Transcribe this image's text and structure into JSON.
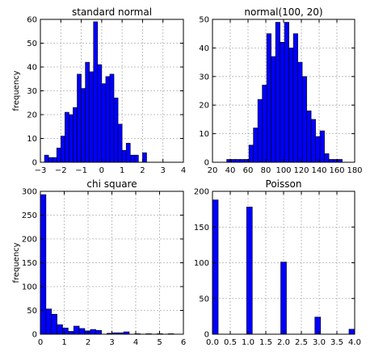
{
  "chart_data": [
    {
      "type": "bar",
      "title": "standard normal",
      "xlabel": "",
      "ylabel": "frequency",
      "xlim": [
        -3,
        4
      ],
      "ylim": [
        0,
        60
      ],
      "xticks": [
        "−3",
        "−2",
        "−1",
        "0",
        "1",
        "2",
        "3",
        "4"
      ],
      "yticks": [
        "0",
        "10",
        "20",
        "30",
        "40",
        "50",
        "60"
      ],
      "grid": true,
      "bin_start": -2.8,
      "bin_width": 0.2,
      "values": [
        3,
        2,
        2,
        6,
        11,
        21,
        20,
        23,
        37,
        31,
        42,
        38,
        59,
        41,
        33,
        36,
        37,
        27,
        16,
        5,
        8,
        3,
        3,
        0,
        4
      ]
    },
    {
      "type": "bar",
      "title": "normal(100, 20)",
      "xlabel": "",
      "ylabel": "",
      "xlim": [
        20,
        180
      ],
      "ylim": [
        0,
        50
      ],
      "xticks": [
        "20",
        "40",
        "60",
        "80",
        "100",
        "120",
        "140",
        "160",
        "180"
      ],
      "yticks": [
        "0",
        "10",
        "20",
        "30",
        "40",
        "50"
      ],
      "grid": true,
      "bin_start": 36,
      "bin_width": 5,
      "values": [
        1,
        1,
        1,
        1,
        1,
        6,
        12,
        22,
        27,
        45,
        37,
        49,
        42,
        49,
        40,
        45,
        35,
        30,
        18,
        15,
        9,
        11,
        3,
        1,
        1,
        1
      ]
    },
    {
      "type": "bar",
      "title": "chi square",
      "xlabel": "",
      "ylabel": "frequency",
      "xlim": [
        0,
        6
      ],
      "ylim": [
        0,
        300
      ],
      "xticks": [
        "0",
        "1",
        "2",
        "3",
        "4",
        "5",
        "6"
      ],
      "yticks": [
        "0",
        "50",
        "100",
        "150",
        "200",
        "250",
        "300"
      ],
      "grid": true,
      "bin_start": 0,
      "bin_width": 0.233,
      "values": [
        293,
        53,
        42,
        20,
        13,
        6,
        17,
        12,
        7,
        10,
        8,
        0,
        2,
        3,
        3,
        5,
        0,
        1,
        0,
        1,
        0,
        1,
        0,
        1,
        0
      ]
    },
    {
      "type": "bar",
      "title": "Poisson",
      "xlabel": "",
      "ylabel": "",
      "xlim": [
        0,
        4
      ],
      "ylim": [
        0,
        200
      ],
      "xticks": [
        "0.0",
        "0.5",
        "1.0",
        "1.5",
        "2.0",
        "2.5",
        "3.0",
        "3.5",
        "4.0"
      ],
      "yticks": [
        "0",
        "50",
        "100",
        "150",
        "200"
      ],
      "grid": true,
      "bin_start": 0,
      "bin_width": 0.16,
      "values": [
        188,
        0,
        0,
        0,
        0,
        0,
        178,
        0,
        0,
        0,
        0,
        0,
        101,
        0,
        0,
        0,
        0,
        0,
        24,
        0,
        0,
        0,
        0,
        0,
        7
      ]
    }
  ]
}
